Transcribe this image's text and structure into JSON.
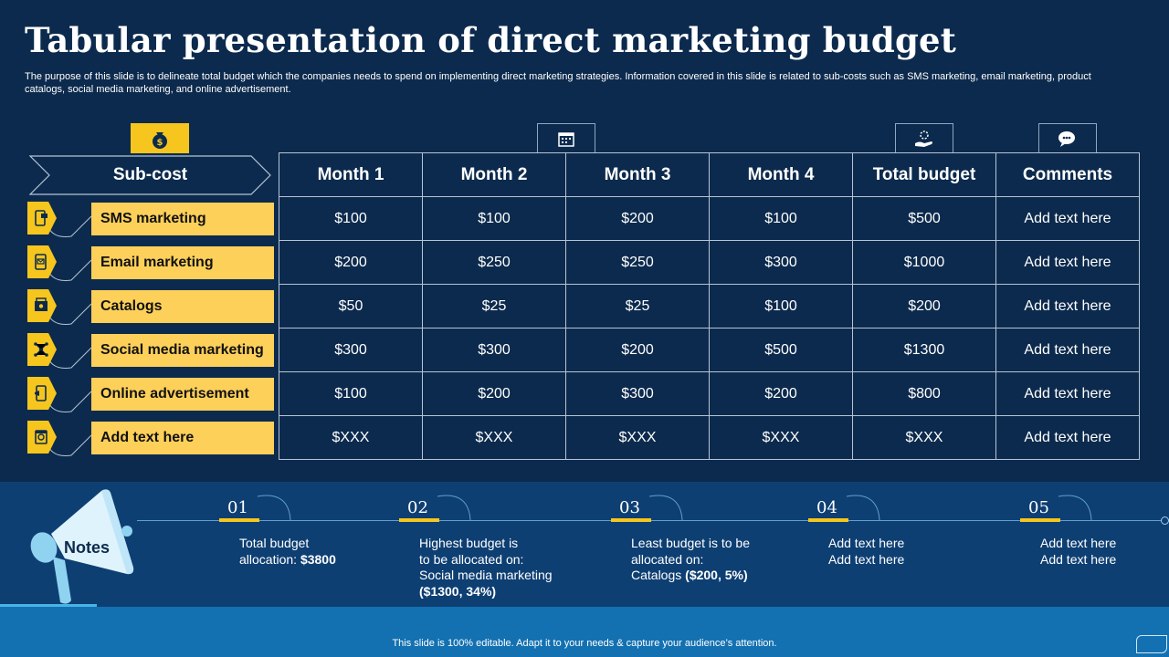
{
  "title": "Tabular presentation of direct marketing budget",
  "description": "The purpose of this slide is to delineate total budget which the companies needs to spend on implementing direct marketing strategies. Information covered in this slide is related to sub-costs such as SMS marketing, email marketing, product catalogs, social media marketing, and online advertisement.",
  "subcost_header": "Sub-cost",
  "rows": [
    {
      "label": "SMS marketing",
      "icon": "mobile-message-icon"
    },
    {
      "label": "Email marketing",
      "icon": "email-phone-icon"
    },
    {
      "label": "Catalogs",
      "icon": "catalog-icon"
    },
    {
      "label": "Social media marketing",
      "icon": "social-network-icon"
    },
    {
      "label": "Online advertisement",
      "icon": "online-ad-icon"
    },
    {
      "label": "Add text here",
      "icon": "shop-icon"
    }
  ],
  "table": {
    "headers": [
      "Month 1",
      "Month 2",
      "Month 3",
      "Month 4",
      "Total budget",
      "Comments"
    ],
    "rows": [
      [
        "$100",
        "$100",
        "$200",
        "$100",
        "$500",
        "Add text here"
      ],
      [
        "$200",
        "$250",
        "$250",
        "$300",
        "$1000",
        "Add text here"
      ],
      [
        "$50",
        "$25",
        "$25",
        "$100",
        "$200",
        "Add text here"
      ],
      [
        "$300",
        "$300",
        "$200",
        "$500",
        "$1300",
        "Add text here"
      ],
      [
        "$100",
        "$200",
        "$300",
        "$200",
        "$800",
        "Add text here"
      ],
      [
        "$XXX",
        "$XXX",
        "$XXX",
        "$XXX",
        "$XXX",
        "Add text here"
      ]
    ]
  },
  "notes": {
    "label": "Notes",
    "steps": [
      {
        "num": "01",
        "lines": [
          "Total budget",
          "allocation: "
        ],
        "bold": "$3800"
      },
      {
        "num": "02",
        "lines": [
          "Highest budget is",
          "to be allocated on:",
          "Social media marketing"
        ],
        "bold": "($1300, 34%)"
      },
      {
        "num": "03",
        "lines": [
          "Least budget is to be",
          "allocated on:",
          "Catalogs "
        ],
        "bold": "($200, 5%)"
      },
      {
        "num": "04",
        "lines": [
          "Add text here",
          "Add text here"
        ],
        "bold": ""
      },
      {
        "num": "05",
        "lines": [
          "Add text here",
          "Add text here"
        ],
        "bold": ""
      }
    ]
  },
  "footer": "This slide is 100% editable. Adapt it to your needs & capture your audience’s attention.",
  "colors": {
    "background": "#0c2a4d",
    "accent": "#f6c61e",
    "label_fill": "#fdd05a",
    "band": "#0e3f73",
    "footer_band": "#1371b2"
  }
}
